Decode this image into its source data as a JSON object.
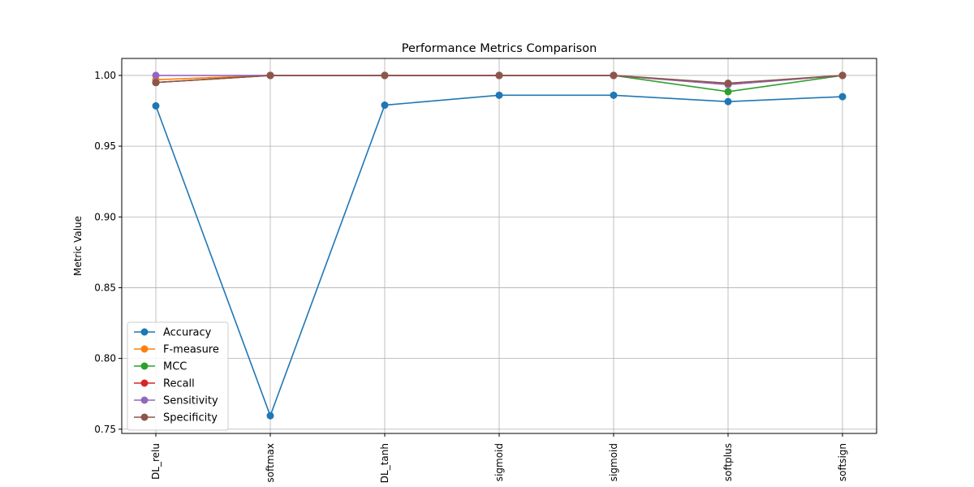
{
  "chart_data": {
    "type": "line",
    "title": "Performance Metrics Comparison",
    "xlabel": "",
    "ylabel": "Metric Value",
    "categories": [
      "DL_relu",
      "softmax",
      "DL_tanh",
      "sigmoid",
      "sigmoid",
      "softplus",
      "softsign"
    ],
    "ylim": [
      0.747,
      1.012
    ],
    "yticks": [
      0.75,
      0.8,
      0.85,
      0.9,
      0.95,
      1.0
    ],
    "ytick_labels": [
      "0.75",
      "0.80",
      "0.85",
      "0.90",
      "0.95",
      "1.00"
    ],
    "grid": true,
    "legend_position": "lower-left",
    "marker": "circle",
    "series": [
      {
        "name": "Accuracy",
        "color": "#1f77b4",
        "values": [
          0.9785,
          0.7595,
          0.979,
          0.986,
          0.986,
          0.9815,
          0.985
        ]
      },
      {
        "name": "F-measure",
        "color": "#ff7f0e",
        "values": [
          0.997,
          1.0,
          1.0,
          1.0,
          1.0,
          0.9935,
          1.0
        ]
      },
      {
        "name": "MCC",
        "color": "#2ca02c",
        "values": [
          0.995,
          1.0,
          1.0,
          1.0,
          1.0,
          0.9885,
          1.0
        ]
      },
      {
        "name": "Recall",
        "color": "#d62728",
        "values": [
          0.995,
          1.0,
          1.0,
          1.0,
          1.0,
          0.994,
          1.0
        ]
      },
      {
        "name": "Sensitivity",
        "color": "#9467bd",
        "values": [
          1.0,
          1.0,
          1.0,
          1.0,
          1.0,
          0.9935,
          1.0
        ]
      },
      {
        "name": "Specificity",
        "color": "#8c564b",
        "values": [
          0.995,
          1.0,
          1.0,
          1.0,
          1.0,
          0.9945,
          1.0
        ]
      }
    ]
  }
}
